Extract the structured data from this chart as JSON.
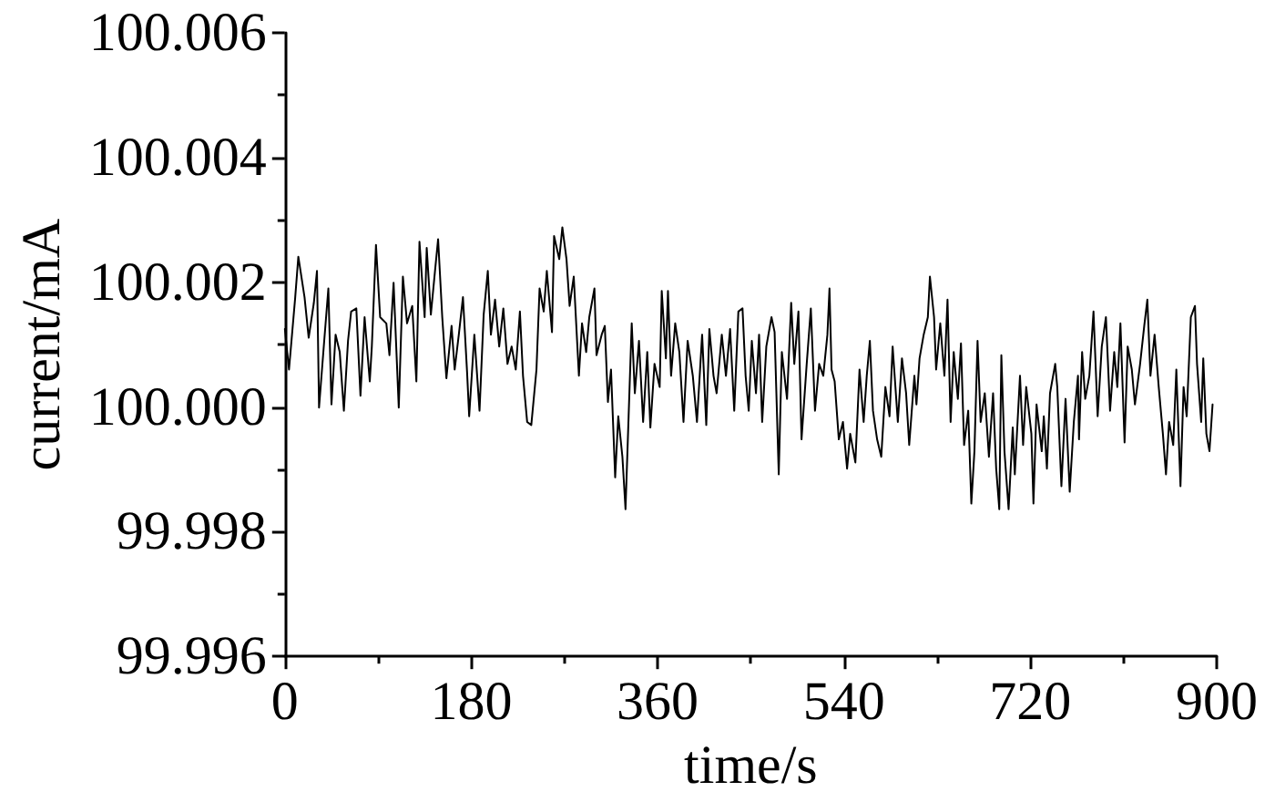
{
  "chart_data": {
    "type": "line",
    "xlabel": "time/s",
    "ylabel": "current/mA",
    "color": "#000000",
    "marker": "none",
    "line_style": "solid",
    "grid": false,
    "xlim": [
      0,
      900
    ],
    "xticks": [
      0,
      {
        "value": 90,
        "label": null
      },
      180,
      {
        "value": 270,
        "label": null
      },
      360,
      {
        "value": 450,
        "label": null
      },
      540,
      {
        "value": 630,
        "label": null
      },
      720,
      {
        "value": 810,
        "label": null
      },
      900
    ],
    "ylim": [
      99.996,
      100.006
    ],
    "yticks": [
      99.996,
      {
        "value": 99.997,
        "label": null
      },
      99.998,
      {
        "value": 99.999,
        "label": null
      },
      {
        "value": 100,
        "label": "100.000"
      },
      {
        "value": 100.001,
        "label": null
      },
      100.002,
      {
        "value": 100.003,
        "label": null
      },
      100.004,
      {
        "value": 100.005,
        "label": null
      },
      100.006
    ],
    "x": [
      0,
      4,
      10,
      13,
      19,
      23,
      28,
      31,
      33,
      38,
      42,
      45,
      49,
      53,
      57,
      61,
      64,
      69,
      73,
      77,
      82,
      84,
      88,
      92,
      98,
      101,
      105,
      110,
      114,
      118,
      123,
      127,
      130,
      135,
      137,
      141,
      145,
      148,
      152,
      156,
      161,
      164,
      168,
      172,
      176,
      178,
      183,
      188,
      192,
      196,
      199,
      203,
      207,
      211,
      215,
      219,
      223,
      227,
      230,
      234,
      238,
      243,
      246,
      250,
      253,
      258,
      260,
      265,
      268,
      272,
      275,
      279,
      284,
      287,
      291,
      294,
      299,
      301,
      306,
      309,
      312,
      315,
      319,
      322,
      326,
      329,
      332,
      335,
      338,
      342,
      346,
      350,
      353,
      357,
      362,
      364,
      368,
      370,
      373,
      377,
      381,
      385,
      389,
      394,
      398,
      403,
      407,
      410,
      414,
      417,
      422,
      426,
      430,
      434,
      438,
      442,
      445,
      448,
      451,
      455,
      458,
      461,
      465,
      470,
      473,
      477,
      480,
      485,
      489,
      492,
      496,
      499,
      504,
      508,
      512,
      516,
      520,
      524,
      526,
      528,
      531,
      535,
      539,
      543,
      546,
      551,
      555,
      559,
      562,
      565,
      568,
      572,
      576,
      580,
      584,
      587,
      592,
      596,
      600,
      603,
      608,
      610,
      613,
      617,
      621,
      623,
      627,
      629,
      633,
      637,
      640,
      643,
      646,
      650,
      653,
      656,
      660,
      663,
      666,
      669,
      672,
      676,
      680,
      684,
      687,
      690,
      692,
      695,
      699,
      703,
      705,
      710,
      713,
      716,
      721,
      723,
      726,
      731,
      733,
      736,
      739,
      744,
      746,
      750,
      754,
      758,
      762,
      766,
      767,
      770,
      773,
      777,
      781,
      785,
      789,
      793,
      797,
      801,
      804,
      807,
      811,
      814,
      818,
      821,
      826,
      830,
      833,
      836,
      840,
      844,
      848,
      851,
      854,
      858,
      861,
      865,
      868,
      871,
      875,
      879,
      881,
      885,
      887,
      890,
      893,
      896
    ],
    "values": [
      100.00125,
      100.0006,
      100.00176,
      100.00241,
      100.00176,
      100.00111,
      100.00167,
      100.00218,
      99.99999,
      100.00106,
      100.0019,
      100.00004,
      100.00116,
      100.00088,
      99.99994,
      100.00106,
      100.00153,
      100.00158,
      100.00018,
      100.00144,
      100.00041,
      100.00097,
      100.0026,
      100.00144,
      100.00134,
      100.00083,
      100.00199,
      99.99999,
      100.00209,
      100.00134,
      100.00162,
      100.00041,
      100.00265,
      100.00144,
      100.00255,
      100.00148,
      100.00218,
      100.00269,
      100.00144,
      100.00046,
      100.0013,
      100.0006,
      100.00116,
      100.00176,
      100.00055,
      99.99985,
      100.00116,
      99.99994,
      100.00148,
      100.00218,
      100.00116,
      100.00172,
      100.00097,
      100.00158,
      100.00069,
      100.00097,
      100.0006,
      100.00153,
      100.0005,
      99.99976,
      99.99971,
      100.0006,
      100.0019,
      100.00153,
      100.00218,
      100.0012,
      100.00274,
      100.00237,
      100.00288,
      100.00237,
      100.00162,
      100.00209,
      100.0005,
      100.00134,
      100.00088,
      100.00144,
      100.0019,
      100.00083,
      100.00116,
      100.0013,
      100.00008,
      100.0006,
      99.99887,
      99.99985,
      99.9992,
      99.99836,
      99.99985,
      100.00134,
      100.00022,
      100.00106,
      99.99976,
      100.00088,
      99.99967,
      100.00069,
      100.00032,
      100.00186,
      100.00078,
      100.00186,
      100.0005,
      100.00134,
      100.00088,
      99.99976,
      100.00106,
      100.0005,
      99.99976,
      100.00116,
      99.99971,
      100.00125,
      100.0005,
      100.00022,
      100.00116,
      100.0005,
      100.00125,
      99.99994,
      100.00153,
      100.00158,
      100.0005,
      99.99994,
      100.00106,
      100.00022,
      100.00116,
      99.99976,
      100.00097,
      100.00144,
      100.0012,
      99.99892,
      100.00088,
      100.00013,
      100.00167,
      100.00069,
      100.00153,
      99.99948,
      100.00069,
      100.00158,
      99.99994,
      100.00069,
      100.0005,
      100.00116,
      100.0019,
      100.0006,
      100.00041,
      99.99948,
      99.99976,
      99.99901,
      99.99957,
      99.99911,
      100.0006,
      99.99976,
      100.0005,
      100.00106,
      99.99994,
      99.99948,
      99.9992,
      100.00032,
      99.99985,
      100.00097,
      99.99976,
      100.00078,
      100.00022,
      99.99939,
      100.0005,
      100.00004,
      100.00078,
      100.00116,
      100.00144,
      100.00209,
      100.00144,
      100.0006,
      100.00134,
      100.0005,
      100.00172,
      99.99976,
      100.00088,
      100.00013,
      100.00102,
      99.99939,
      99.99994,
      99.99845,
      99.99929,
      100.00106,
      99.99976,
      100.00022,
      99.9992,
      100.00022,
      99.99901,
      99.99836,
      100.00083,
      99.99929,
      99.99836,
      99.99967,
      99.99892,
      100.0005,
      99.99939,
      100.00032,
      99.99957,
      99.99845,
      100.00004,
      99.99929,
      99.99985,
      99.99901,
      100.00022,
      100.00069,
      100.00032,
      99.99873,
      100.00013,
      99.99864,
      99.99976,
      100.0005,
      99.99948,
      100.00088,
      100.00013,
      100.0005,
      100.00153,
      99.99985,
      100.00097,
      100.00144,
      99.99994,
      100.00088,
      100.00032,
      100.00134,
      99.99943,
      100.00097,
      100.0006,
      100.00004,
      100.00069,
      100.0013,
      100.00172,
      100.0005,
      100.00116,
      100.00032,
      99.99957,
      99.99892,
      99.99976,
      99.99939,
      100.0006,
      99.99873,
      100.00032,
      99.99985,
      100.00144,
      100.00162,
      100.00069,
      99.99976,
      100.00078,
      99.99957,
      99.99929,
      100.00004
    ]
  }
}
